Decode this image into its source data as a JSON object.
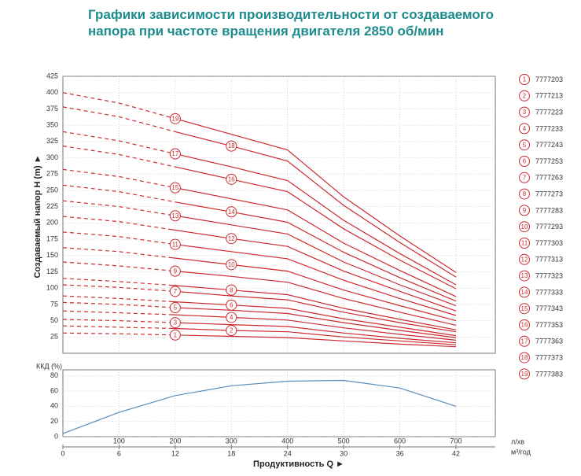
{
  "chart_data": [
    {
      "type": "line",
      "title": [
        "Графики зависимости производительности от создаваемого",
        "напора при частоте вращения двигателя 2850 об/мин"
      ],
      "y_label": "Создаваемый напор H (m) ►",
      "color": "#cc2a2f",
      "grid": true,
      "xlim": [
        0,
        770
      ],
      "xticks": [
        100,
        200,
        300,
        400,
        500,
        600,
        700
      ],
      "ylim": [
        0,
        425
      ],
      "yticks": [
        25,
        50,
        75,
        100,
        125,
        150,
        175,
        200,
        225,
        250,
        275,
        300,
        325,
        350,
        375,
        400,
        425
      ],
      "x": [
        0,
        100,
        200,
        300,
        400,
        500,
        600,
        700
      ],
      "series": [
        {
          "name": "1",
          "code": "7777203",
          "values": [
            31,
            30,
            28,
            26,
            24,
            19,
            14,
            10
          ]
        },
        {
          "name": "2",
          "code": "7777213",
          "values": [
            42,
            40,
            38,
            35,
            33,
            25,
            19,
            13
          ]
        },
        {
          "name": "3",
          "code": "7777223",
          "values": [
            52,
            50,
            47,
            44,
            41,
            31,
            23,
            16
          ]
        },
        {
          "name": "4",
          "code": "7777233",
          "values": [
            65,
            62,
            59,
            55,
            51,
            39,
            29,
            20
          ]
        },
        {
          "name": "5",
          "code": "7777243",
          "values": [
            78,
            75,
            70,
            66,
            61,
            47,
            35,
            24
          ]
        },
        {
          "name": "6",
          "code": "7777253",
          "values": [
            88,
            84,
            79,
            74,
            69,
            53,
            40,
            27
          ]
        },
        {
          "name": "7",
          "code": "7777263",
          "values": [
            105,
            101,
            95,
            88,
            82,
            63,
            47,
            33
          ]
        },
        {
          "name": "8",
          "code": "7777273",
          "values": [
            115,
            110,
            104,
            97,
            90,
            69,
            52,
            36
          ]
        },
        {
          "name": "9",
          "code": "7777283",
          "values": [
            140,
            134,
            126,
            118,
            109,
            84,
            63,
            43
          ]
        },
        {
          "name": "10",
          "code": "7777293",
          "values": [
            162,
            156,
            146,
            136,
            126,
            97,
            73,
            50
          ]
        },
        {
          "name": "11",
          "code": "7777303",
          "values": [
            186,
            179,
            167,
            156,
            145,
            112,
            84,
            58
          ]
        },
        {
          "name": "12",
          "code": "7777313",
          "values": [
            210,
            202,
            189,
            176,
            164,
            126,
            95,
            65
          ]
        },
        {
          "name": "13",
          "code": "7777323",
          "values": [
            234,
            225,
            211,
            197,
            183,
            140,
            105,
            73
          ]
        },
        {
          "name": "14",
          "code": "7777333",
          "values": [
            258,
            248,
            232,
            217,
            201,
            155,
            116,
            80
          ]
        },
        {
          "name": "15",
          "code": "7777343",
          "values": [
            282,
            271,
            254,
            237,
            220,
            169,
            127,
            87
          ]
        },
        {
          "name": "16",
          "code": "7777353",
          "values": [
            318,
            305,
            286,
            267,
            248,
            191,
            143,
            99
          ]
        },
        {
          "name": "17",
          "code": "7777363",
          "values": [
            340,
            326,
            306,
            286,
            265,
            204,
            153,
            105
          ]
        },
        {
          "name": "18",
          "code": "7777373",
          "values": [
            378,
            363,
            340,
            318,
            295,
            227,
            170,
            117
          ]
        },
        {
          "name": "19",
          "code": "7777383",
          "values": [
            400,
            384,
            360,
            336,
            312,
            240,
            180,
            124
          ]
        }
      ]
    },
    {
      "type": "line",
      "y_label": "ККД (%)",
      "x_label": "Продуктивность Q ►",
      "x_unit": "л/хв",
      "x2_unit": "м³/год",
      "color": "#5b8db8",
      "grid": true,
      "xlim": [
        0,
        770
      ],
      "xticks": [
        100,
        200,
        300,
        400,
        500,
        600,
        700
      ],
      "x2lim": [
        0,
        46.2
      ],
      "x2ticks": [
        0,
        6,
        12,
        18,
        24,
        30,
        36,
        42
      ],
      "ylim": [
        0,
        88
      ],
      "yticks": [
        0,
        20,
        40,
        60,
        80
      ],
      "x": [
        0,
        100,
        200,
        300,
        400,
        500,
        600,
        700
      ],
      "values": [
        4,
        32,
        54,
        67,
        73,
        74,
        64,
        40
      ]
    }
  ]
}
